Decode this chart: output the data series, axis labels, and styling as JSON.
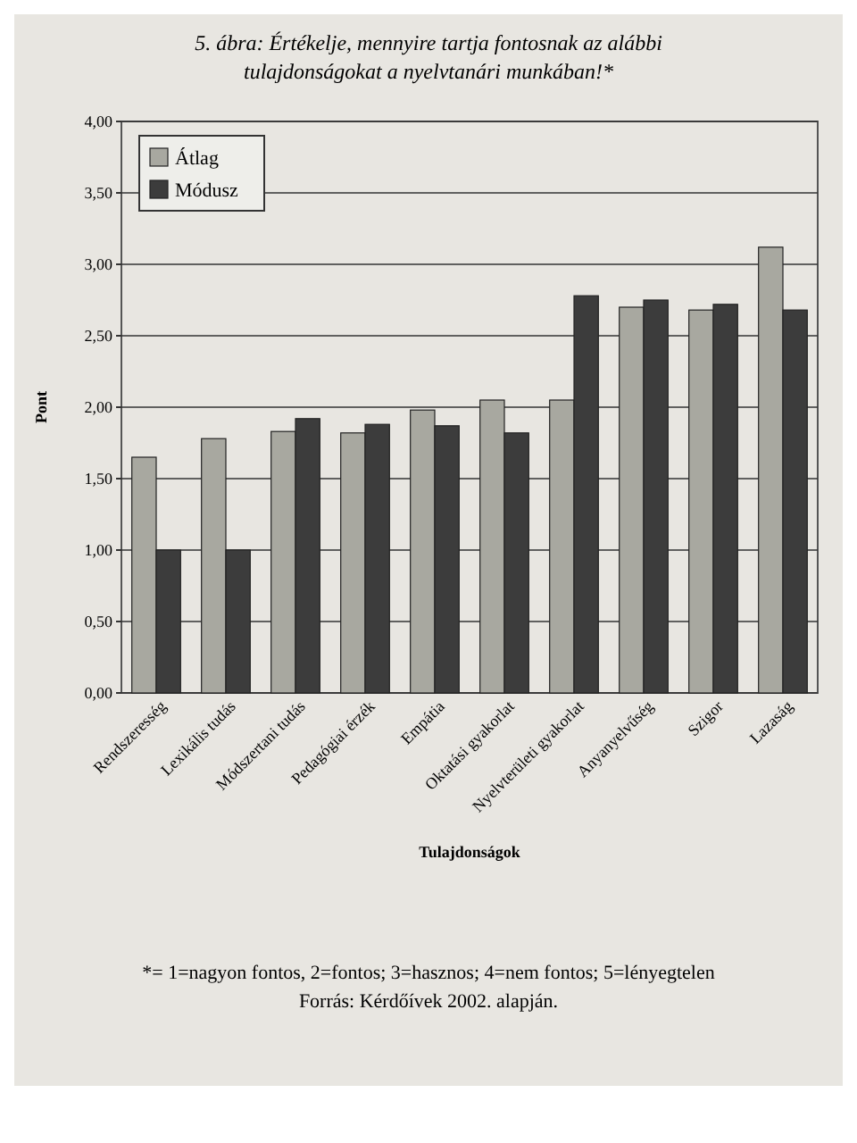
{
  "chart_data": {
    "type": "bar",
    "title": "5. ábra: Értékelje, mennyire tartja fontosnak az alábbi tulajdonságokat a nyelvtanári munkában!*",
    "xlabel": "Tulajdonságok",
    "ylabel": "Pont",
    "categories": [
      "Rendszeresség",
      "Lexikális tudás",
      "Módszertani tudás",
      "Pedagógiai érzék",
      "Empátia",
      "Oktatási gyakorlat",
      "Nyelvterületi gyakorlat",
      "Anyanyelvűség",
      "Szigor",
      "Lazaság"
    ],
    "series": [
      {
        "name": "Átlag",
        "color": "#a8a8a0",
        "values": [
          1.65,
          1.78,
          1.83,
          1.82,
          1.98,
          2.05,
          2.05,
          2.7,
          2.68,
          3.12
        ]
      },
      {
        "name": "Módusz",
        "color": "#3c3c3c",
        "values": [
          1,
          1,
          1.92,
          1.88,
          1.87,
          1.82,
          2.78,
          2.75,
          2.72,
          2.68
        ]
      }
    ],
    "ylim": [
      0,
      4
    ],
    "yticks": [
      {
        "value": 0,
        "label": "0,00"
      },
      {
        "value": 0.5,
        "label": "0,50"
      },
      {
        "value": 1,
        "label": "1,00"
      },
      {
        "value": 1.5,
        "label": "1,50"
      },
      {
        "value": 2,
        "label": "2,00"
      },
      {
        "value": 2.5,
        "label": "2,50"
      },
      {
        "value": 3,
        "label": "3,00"
      },
      {
        "value": 3.5,
        "label": "3,50"
      },
      {
        "value": 4,
        "label": "4,00"
      }
    ],
    "grid": "y",
    "legend": "top left",
    "annotations": [
      "*= 1=nagyon fontos, 2=fontos; 3=hasznos; 4=nem fontos; 5=lényegtelen",
      "Forrás: Kérdőívek 2002. alapján."
    ]
  }
}
